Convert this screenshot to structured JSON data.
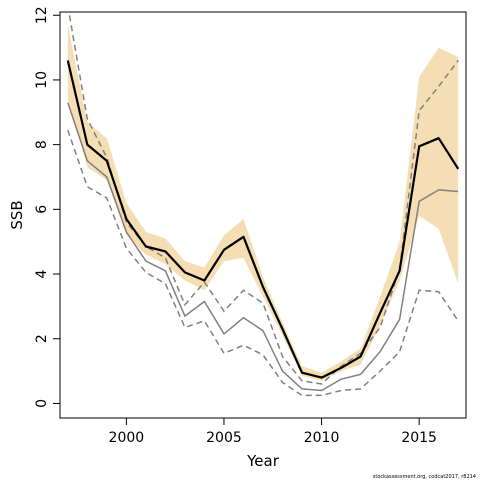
{
  "chart_data": {
    "type": "line",
    "xlabel": "Year",
    "ylabel": "SSB",
    "xlim": [
      1996.6,
      2017.4
    ],
    "ylim": [
      -0.45,
      12.1
    ],
    "xticks": [
      2000,
      2005,
      2010,
      2015
    ],
    "yticks": [
      0,
      2,
      4,
      6,
      8,
      10,
      12
    ],
    "grid": false,
    "credit": "stockassessment.org, codcat2017, r8214",
    "colors": {
      "band": "#f5deb3",
      "estimate": "#000000",
      "comparison": "#808080"
    },
    "x": [
      1997,
      1998,
      1999,
      2000,
      2001,
      2002,
      2003,
      2004,
      2005,
      2006,
      2007,
      2008,
      2009,
      2010,
      2011,
      2012,
      2013,
      2014,
      2015,
      2016,
      2017
    ],
    "series": [
      {
        "role": "confidence-band",
        "lower": [
          9.4,
          7.3,
          6.9,
          5.2,
          4.6,
          4.3,
          3.8,
          3.5,
          4.4,
          4.5,
          3.3,
          2.1,
          0.85,
          0.7,
          1.0,
          1.2,
          2.4,
          3.8,
          5.8,
          5.4,
          3.7
        ],
        "upper": [
          11.7,
          8.7,
          8.2,
          6.2,
          5.3,
          5.1,
          4.4,
          4.2,
          5.2,
          5.7,
          3.9,
          2.5,
          1.15,
          0.95,
          1.3,
          1.7,
          3.3,
          5.0,
          10.1,
          11.0,
          10.7
        ]
      },
      {
        "role": "estimate",
        "values": [
          10.6,
          8.0,
          7.5,
          5.7,
          4.85,
          4.7,
          4.05,
          3.8,
          4.75,
          5.15,
          3.6,
          2.3,
          0.95,
          0.8,
          1.1,
          1.45,
          2.8,
          4.1,
          7.95,
          8.2,
          7.25
        ]
      },
      {
        "role": "comparison-estimate",
        "values": [
          9.3,
          7.5,
          7.0,
          5.3,
          4.4,
          4.1,
          2.7,
          3.15,
          2.15,
          2.65,
          2.25,
          1.0,
          0.45,
          0.4,
          0.75,
          0.9,
          1.6,
          2.6,
          6.25,
          6.6,
          6.55
        ]
      },
      {
        "role": "comparison-lower",
        "values": [
          8.45,
          6.7,
          6.35,
          4.8,
          4.05,
          3.7,
          2.35,
          2.55,
          1.55,
          1.8,
          1.5,
          0.65,
          0.25,
          0.25,
          0.4,
          0.45,
          1.0,
          1.6,
          3.5,
          3.45,
          2.55
        ]
      },
      {
        "role": "comparison-upper",
        "values": [
          12.3,
          8.8,
          7.6,
          5.6,
          4.85,
          4.5,
          3.05,
          3.75,
          2.85,
          3.5,
          3.1,
          1.45,
          0.7,
          0.6,
          1.15,
          1.55,
          2.35,
          4.15,
          9.05,
          9.8,
          10.6
        ]
      }
    ]
  }
}
